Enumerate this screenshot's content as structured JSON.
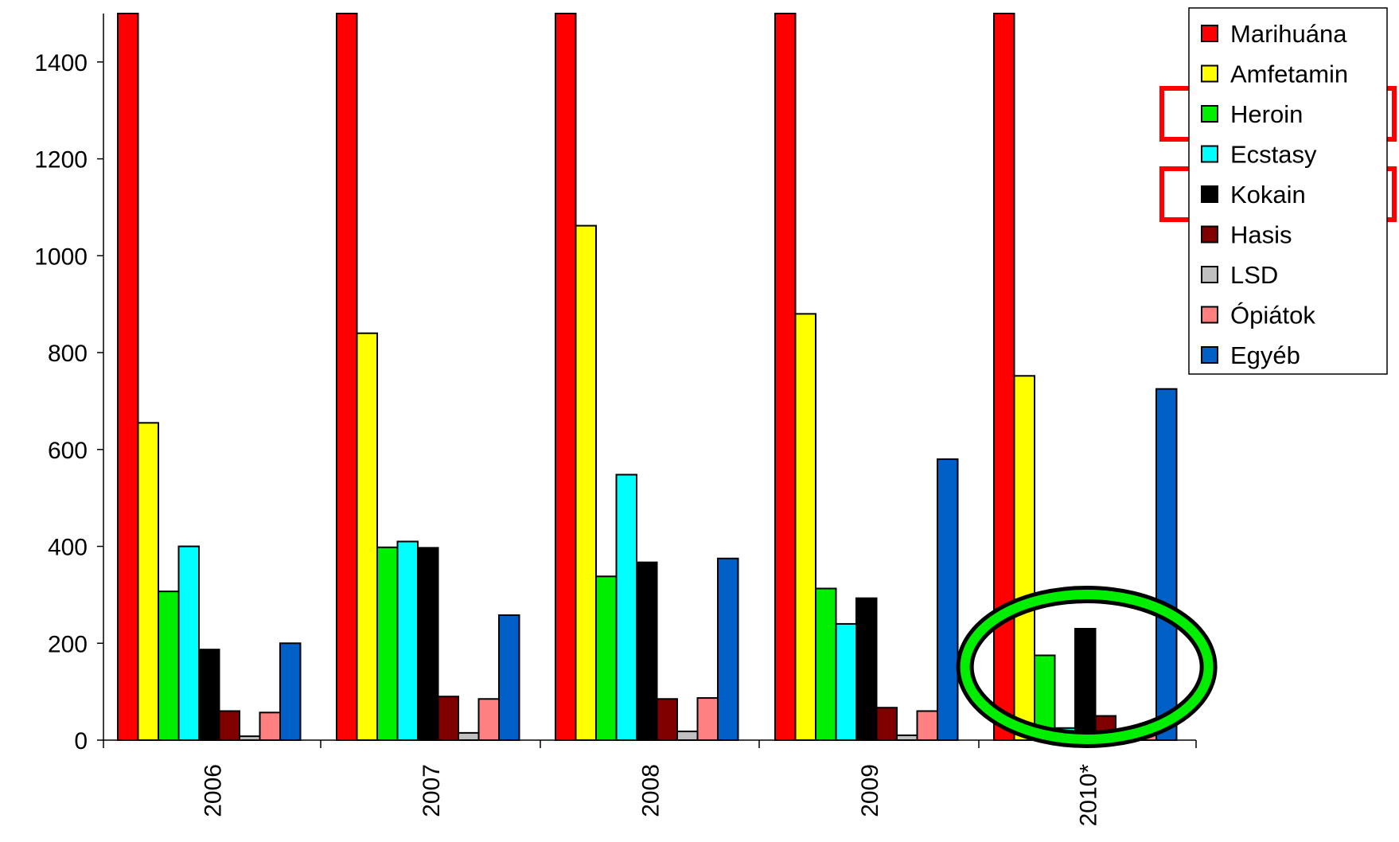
{
  "chart_data": {
    "type": "bar",
    "categories": [
      "2006",
      "2007",
      "2008",
      "2009",
      "2010*"
    ],
    "yticks": [
      "0",
      "200",
      "400",
      "600",
      "800",
      "1000",
      "1200",
      "1400"
    ],
    "ylim": [
      0,
      1500
    ],
    "grid": false,
    "legend_position": "top-right",
    "series": [
      {
        "name": "Marihuána",
        "color": "#ff0000",
        "values": [
          1500,
          1500,
          1500,
          1500,
          1500
        ]
      },
      {
        "name": "Amfetamin",
        "color": "#ffff00",
        "values": [
          655,
          840,
          1062,
          880,
          752
        ]
      },
      {
        "name": "Heroin",
        "color": "#00ee00",
        "values": [
          307,
          398,
          338,
          313,
          175
        ]
      },
      {
        "name": "Ecstasy",
        "color": "#00ffff",
        "values": [
          400,
          410,
          548,
          240,
          25
        ]
      },
      {
        "name": "Kokain",
        "color": "#000000",
        "values": [
          187,
          397,
          367,
          293,
          230
        ]
      },
      {
        "name": "Hasis",
        "color": "#800000",
        "values": [
          60,
          90,
          85,
          67,
          50
        ]
      },
      {
        "name": "LSD",
        "color": "#c0c0c0",
        "values": [
          8,
          15,
          18,
          10,
          10
        ]
      },
      {
        "name": "Ópiátok",
        "color": "#ff8080",
        "values": [
          57,
          85,
          87,
          60,
          30
        ]
      },
      {
        "name": "Egyéb",
        "color": "#0060c8",
        "values": [
          200,
          258,
          375,
          580,
          725
        ]
      }
    ],
    "annotations": {
      "legend_highlight_color": "#ff0000",
      "legend_highlighted": [
        "Heroin",
        "Kokain"
      ],
      "ellipse_color": "#00ee00",
      "ellipse_category": "2010*"
    }
  }
}
